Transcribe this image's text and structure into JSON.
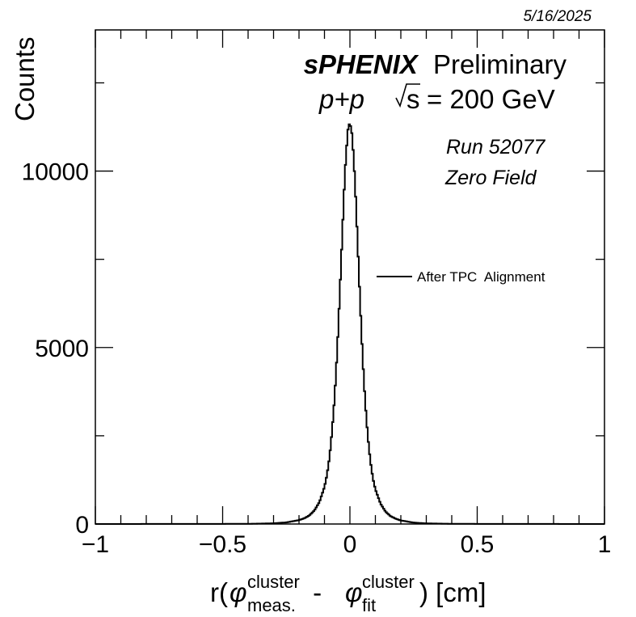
{
  "date": "5/16/2025",
  "experiment": {
    "name": "sPHENIX",
    "status": "Preliminary",
    "system": "p+p",
    "energy_prefix": "s",
    "energy_value": "= 200 GeV"
  },
  "run_label": "Run 52077",
  "field_label": "Zero Field",
  "colors": {
    "line": "#000000",
    "frame": "#000000",
    "background": "#ffffff"
  },
  "chart_data": {
    "type": "line",
    "style": "step-histogram",
    "ylabel": "Counts",
    "xlabel_parts": {
      "prefix": "r(",
      "phi": "φ",
      "sup1": "cluster",
      "sub1": "meas.",
      "minus": " - ",
      "sup2": "cluster",
      "sub2": "fit",
      "suffix": ") [cm]"
    },
    "xlim": [
      -1,
      1
    ],
    "ylim": [
      0,
      14000
    ],
    "x_ticks": [
      -1,
      -0.5,
      0,
      0.5,
      1
    ],
    "x_tick_labels": [
      "−1",
      "−0.5",
      "0",
      "0.5",
      "1"
    ],
    "y_ticks": [
      0,
      5000,
      10000
    ],
    "y_tick_labels": [
      "0",
      "5000",
      "10000"
    ],
    "grid": false,
    "legend_position": "center-right",
    "series": [
      {
        "name": "After TPC  Alignment",
        "x": [
          -1.0,
          -0.4,
          -0.3,
          -0.25,
          -0.2,
          -0.18,
          -0.16,
          -0.14,
          -0.12,
          -0.1,
          -0.09,
          -0.08,
          -0.07,
          -0.06,
          -0.05,
          -0.04,
          -0.03,
          -0.02,
          -0.01,
          -0.005,
          0.0,
          0.005,
          0.01,
          0.02,
          0.03,
          0.04,
          0.05,
          0.06,
          0.07,
          0.08,
          0.09,
          0.1,
          0.12,
          0.14,
          0.16,
          0.18,
          0.2,
          0.25,
          0.3,
          0.4,
          1.0
        ],
        "y": [
          0,
          5,
          20,
          45,
          110,
          160,
          240,
          380,
          620,
          1050,
          1400,
          1900,
          2650,
          3600,
          4900,
          6500,
          8200,
          9900,
          11000,
          11350,
          11300,
          11250,
          10900,
          9700,
          8000,
          6300,
          4700,
          3450,
          2500,
          1800,
          1300,
          980,
          580,
          350,
          220,
          150,
          100,
          40,
          18,
          5,
          0
        ]
      }
    ]
  }
}
